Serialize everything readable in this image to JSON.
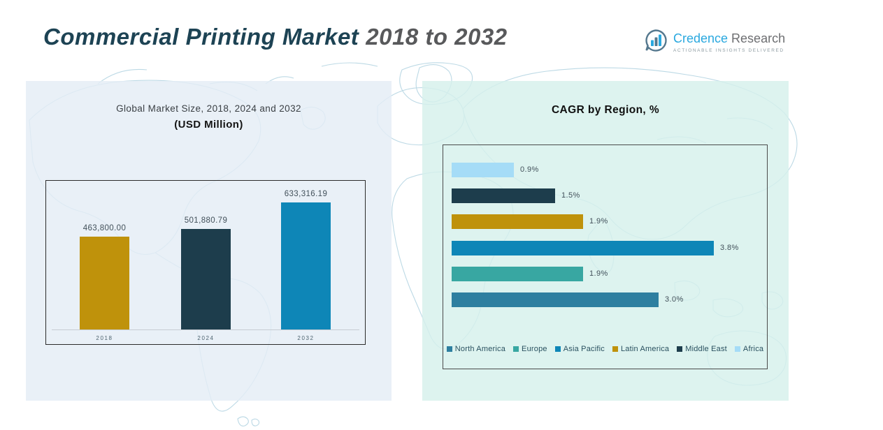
{
  "header": {
    "title_main": "Commercial Printing Market",
    "title_period": "2018 to 2032",
    "logo": {
      "brand_word1": "Credence",
      "brand_word2": "Research",
      "tagline": "Actionable Insights Delivered",
      "brand_color": "#29a8df",
      "brand_gray": "#6d6e71"
    }
  },
  "chart_data": [
    {
      "type": "bar",
      "orientation": "vertical",
      "title": "Global Market Size, 2018, 2024 and 2032",
      "subtitle": "(USD Million)",
      "categories": [
        "2018",
        "2024",
        "2032"
      ],
      "values": [
        463800.0,
        501880.79,
        633316.19
      ],
      "value_labels": [
        "463,800.00",
        "501,880.79",
        "633,316.19"
      ],
      "bar_colors": [
        "#bf920b",
        "#1d3d4c",
        "#0e86b7"
      ],
      "ylim": [
        0,
        650000
      ],
      "grid": false,
      "legend_position": "none"
    },
    {
      "type": "bar",
      "orientation": "horizontal",
      "title": "CAGR by Region, %",
      "bars": [
        {
          "label": "Africa",
          "value": 0.9,
          "display": "0.9%",
          "color": "#a5dcf7"
        },
        {
          "label": "Middle East",
          "value": 1.5,
          "display": "1.5%",
          "color": "#1d3d4c"
        },
        {
          "label": "Latin America",
          "value": 1.9,
          "display": "1.9%",
          "color": "#bf920b"
        },
        {
          "label": "Asia Pacific",
          "value": 3.8,
          "display": "3.8%",
          "color": "#0e86b7"
        },
        {
          "label": "Europe",
          "value": 1.9,
          "display": "1.9%",
          "color": "#38a7a2"
        },
        {
          "label": "North America",
          "value": 3.0,
          "display": "3.0%",
          "color": "#2e7fa0"
        }
      ],
      "legend": [
        {
          "label": "North America",
          "color": "#2e7fa0"
        },
        {
          "label": "Europe",
          "color": "#38a7a2"
        },
        {
          "label": "Asia Pacific",
          "color": "#0e86b7"
        },
        {
          "label": "Latin America",
          "color": "#bf920b"
        },
        {
          "label": "Middle East",
          "color": "#1d3d4c"
        },
        {
          "label": "Africa",
          "color": "#a5dcf7"
        }
      ],
      "xlim": [
        0,
        4
      ],
      "grid": false,
      "legend_position": "bottom"
    }
  ],
  "colors": {
    "panel_left_bg": "#e4edf5",
    "panel_right_bg": "#d6f0eb",
    "map_outline": "#bcd9e5",
    "title_teal": "#1d4354",
    "title_gray": "#58595b"
  }
}
